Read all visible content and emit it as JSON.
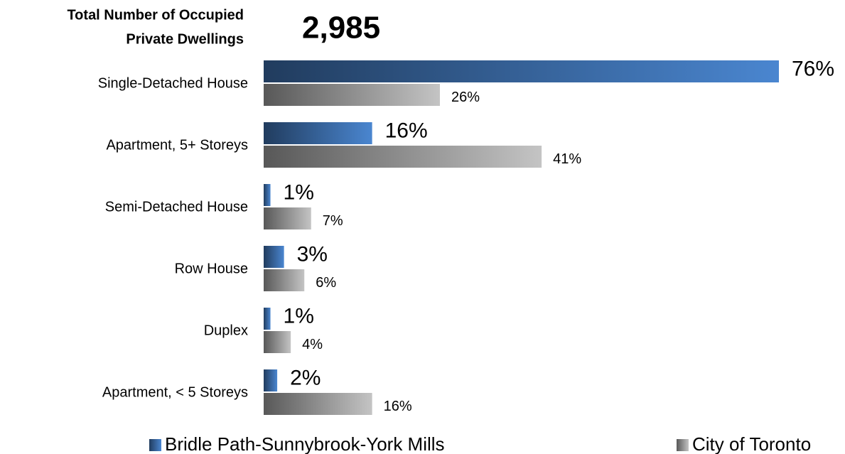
{
  "chart_data": {
    "type": "hbar",
    "title_lines": [
      "Total Number of Occupied",
      "Private Dwellings"
    ],
    "total": "2,985",
    "categories": [
      "Single-Detached House",
      "Apartment, 5+ Storeys",
      "Semi-Detached House",
      "Row House",
      "Duplex",
      "Apartment, < 5 Storeys"
    ],
    "series": [
      {
        "name": "Bridle Path-Sunnybrook-York Mills",
        "color": "#4a86d0",
        "values": [
          76,
          16,
          1,
          3,
          1,
          2
        ],
        "value_labels": [
          "76%",
          "16%",
          "1%",
          "3%",
          "1%",
          "2%"
        ]
      },
      {
        "name": "City of Toronto",
        "color": "#c4c4c4",
        "values": [
          26,
          41,
          7,
          6,
          4,
          16
        ],
        "value_labels": [
          "26%",
          "41%",
          "7%",
          "6%",
          "4%",
          "16%"
        ]
      }
    ]
  }
}
